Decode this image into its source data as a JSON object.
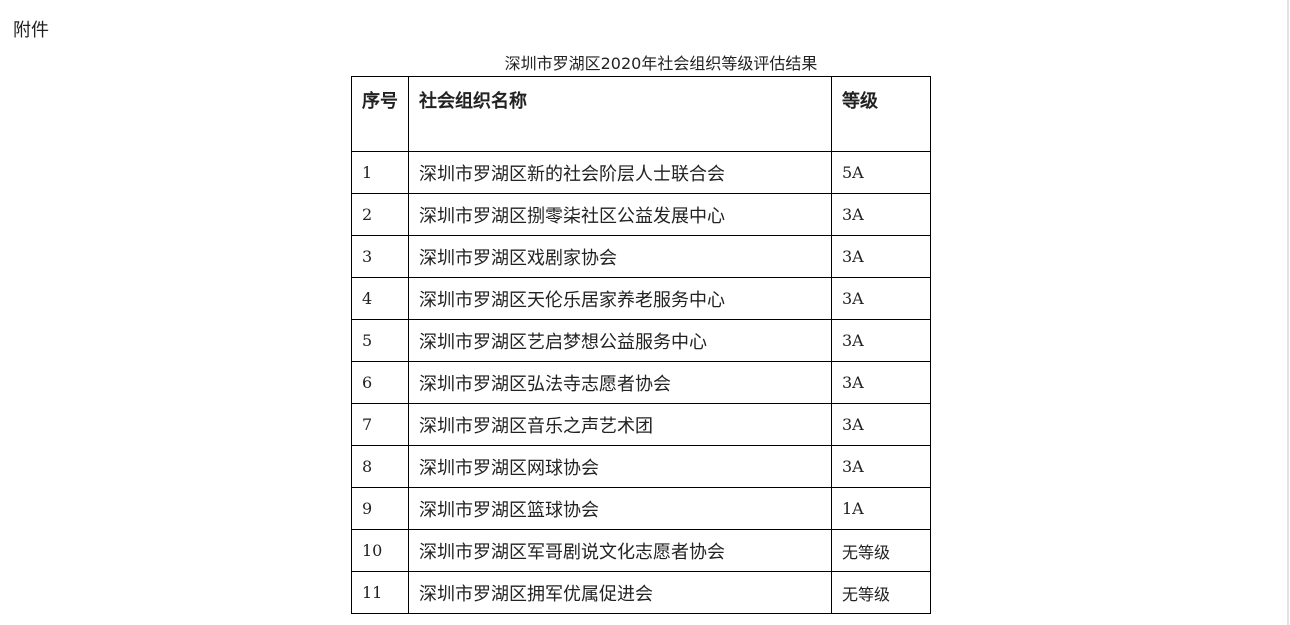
{
  "attachment_label": "附件",
  "title": "深圳市罗湖区2020年社会组织等级评估结果",
  "table": {
    "headers": [
      "序号",
      "社会组织名称",
      "等级"
    ],
    "rows": [
      [
        "1",
        "深圳市罗湖区新的社会阶层人士联合会",
        "5A"
      ],
      [
        "2",
        "深圳市罗湖区捌零柒社区公益发展中心",
        "3A"
      ],
      [
        "3",
        "深圳市罗湖区戏剧家协会",
        "3A"
      ],
      [
        "4",
        "深圳市罗湖区天伦乐居家养老服务中心",
        "3A"
      ],
      [
        "5",
        "深圳市罗湖区艺启梦想公益服务中心",
        "3A"
      ],
      [
        "6",
        "深圳市罗湖区弘法寺志愿者协会",
        "3A"
      ],
      [
        "7",
        "深圳市罗湖区音乐之声艺术团",
        "3A"
      ],
      [
        "8",
        "深圳市罗湖区网球协会",
        "3A"
      ],
      [
        "9",
        "深圳市罗湖区篮球协会",
        "1A"
      ],
      [
        "10",
        "深圳市罗湖区军哥剧说文化志愿者协会",
        "无等级"
      ],
      [
        "11",
        "深圳市罗湖区拥军优属促进会",
        "无等级"
      ]
    ]
  }
}
